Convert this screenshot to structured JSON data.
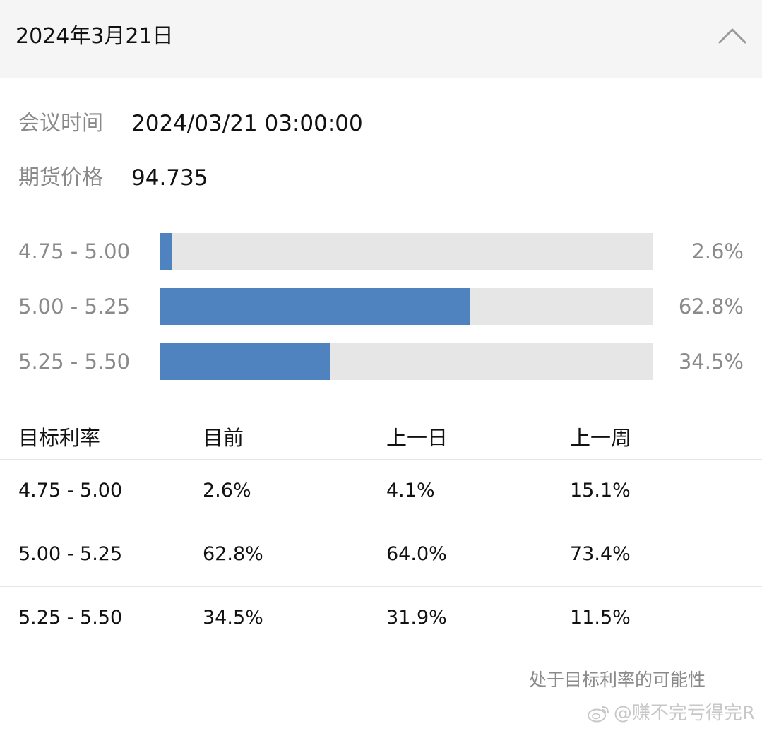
{
  "header": {
    "title": "2024年3月21日",
    "collapse_icon": "chevron-up-icon"
  },
  "meeting": {
    "time_label": "会议时间",
    "time_value": "2024/03/21 03:00:00",
    "futures_label": "期货价格",
    "futures_value": "94.735"
  },
  "chart_data": {
    "type": "bar",
    "orientation": "horizontal",
    "categories": [
      "4.75 - 5.00",
      "5.00 - 5.25",
      "5.25 - 5.50"
    ],
    "values": [
      2.6,
      62.8,
      34.5
    ],
    "value_labels": [
      "2.6%",
      "62.8%",
      "34.5%"
    ],
    "xlim": [
      0,
      100
    ],
    "bar_color": "#4f83c0",
    "track_color": "#e6e6e6",
    "grid": false
  },
  "table": {
    "headers": [
      "目标利率",
      "目前",
      "上一日",
      "上一周"
    ],
    "rows": [
      [
        "4.75 - 5.00",
        "2.6%",
        "4.1%",
        "15.1%"
      ],
      [
        "5.00 - 5.25",
        "62.8%",
        "64.0%",
        "73.4%"
      ],
      [
        "5.25 - 5.50",
        "34.5%",
        "31.9%",
        "11.5%"
      ]
    ]
  },
  "footnote": "处于目标利率的可能性",
  "watermark": {
    "icon": "weibo-icon",
    "text": "@赚不完亏得完R"
  }
}
